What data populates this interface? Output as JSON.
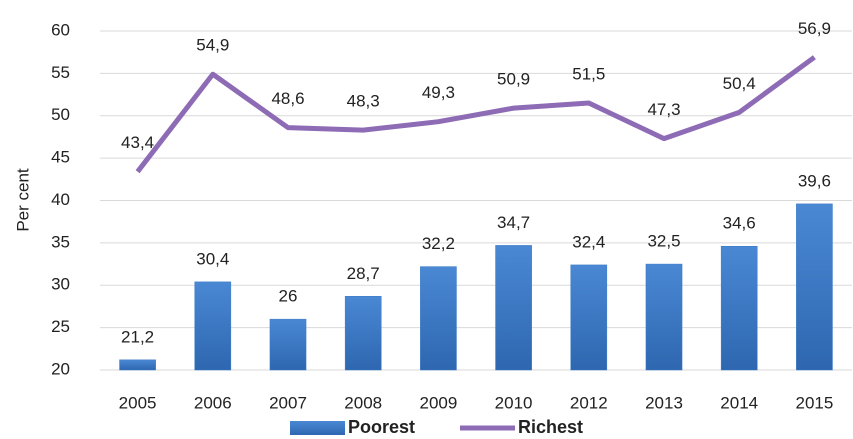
{
  "chart_data": {
    "type": "bar",
    "y_label": "Per cent",
    "categories": [
      "2005",
      "2006",
      "2007",
      "2008",
      "2009",
      "2010",
      "2012",
      "2013",
      "2014",
      "2015"
    ],
    "series": [
      {
        "name": "Poorest",
        "type": "bar",
        "color": "#3b78c4",
        "values": [
          21.2,
          30.4,
          26,
          28.7,
          32.2,
          34.7,
          32.4,
          32.5,
          34.6,
          39.6
        ],
        "value_labels": [
          "21,2",
          "30,4",
          "26",
          "28,7",
          "32,2",
          "34,7",
          "32,4",
          "32,5",
          "34,6",
          "39,6"
        ]
      },
      {
        "name": "Richest",
        "type": "line",
        "color": "#8e6bb5",
        "values": [
          43.4,
          54.9,
          48.6,
          48.3,
          49.3,
          50.9,
          51.5,
          47.3,
          50.4,
          56.9
        ],
        "value_labels": [
          "43,4",
          "54,9",
          "48,6",
          "48,3",
          "49,3",
          "50,9",
          "51,5",
          "47,3",
          "50,4",
          "56,9"
        ]
      }
    ],
    "ylim": [
      20,
      60
    ],
    "yticks": [
      20,
      25,
      30,
      35,
      40,
      45,
      50,
      55,
      60
    ],
    "grid": true
  }
}
